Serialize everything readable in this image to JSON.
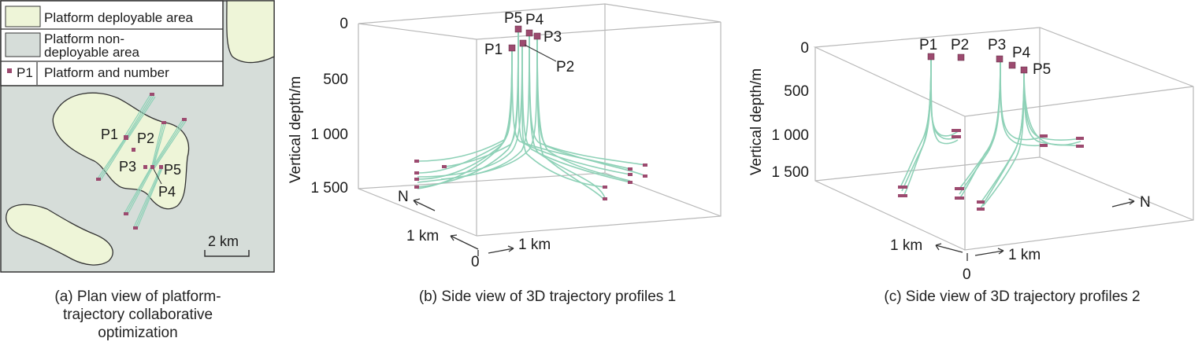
{
  "colors": {
    "deployable": "#eef5d8",
    "non_deployable": "#d6ddd9",
    "trajectory": "#8ed1b7",
    "platform": "#9c4a6f",
    "edge": "#b8b8b8"
  },
  "panel_a": {
    "legend": {
      "deployable": "Platform deployable area",
      "non_deployable_1": "Platform non-",
      "non_deployable_2": "deployable area",
      "platform_marker": "P1",
      "platform": "Platform and number"
    },
    "labels": {
      "p1": "P1",
      "p2": "P2",
      "p3": "P3",
      "p4": "P4",
      "p5": "P5"
    },
    "scale": "2 km",
    "caption_1": "(a) Plan view of platform-",
    "caption_2": "trajectory collaborative",
    "caption_3": "optimization"
  },
  "panel_b": {
    "y_axis_label": "Vertical depth/m",
    "ticks": [
      "0",
      "500",
      "1 000",
      "1 500"
    ],
    "platforms": {
      "p1": "P1",
      "p2": "P2",
      "p3": "P3",
      "p4": "P4",
      "p5": "P5"
    },
    "north": "N",
    "km_1": "1 km",
    "km_2": "1 km",
    "origin": "0",
    "caption": "(b) Side view of 3D trajectory profiles 1"
  },
  "panel_c": {
    "y_axis_label": "Vertical depth/m",
    "ticks": [
      "0",
      "500",
      "1 000",
      "1 500"
    ],
    "platforms": {
      "p1": "P1",
      "p2": "P2",
      "p3": "P3",
      "p4": "P4",
      "p5": "P5"
    },
    "north": "N",
    "km_1": "1 km",
    "km_2": "1 km",
    "origin": "0",
    "caption": "(c) Side view of 3D trajectory profiles 2"
  }
}
